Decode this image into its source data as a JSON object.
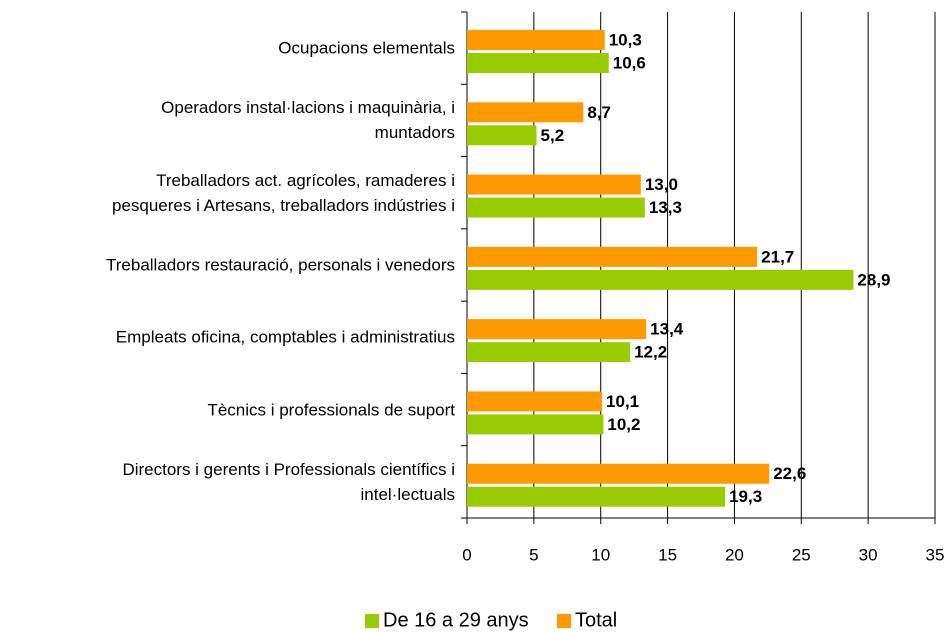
{
  "chart_data": {
    "type": "hbar",
    "categories": [
      "Ocupacions elementals",
      "Operadors instal·lacions i maquinària, i\nmuntadors",
      "Treballadors act. agrícoles, ramaderes i\npesqueres i Artesans, treballadors indústries i",
      "Treballadors restauració, personals i venedors",
      "Empleats oficina, comptables i administratius",
      "Tècnics i professionals de suport",
      "Directors i gerents i Professionals científics i\nintel·lectuals"
    ],
    "series": [
      {
        "name": "De 16 a 29 anys",
        "color": "#99cc00",
        "values": [
          10.6,
          5.2,
          13.3,
          28.9,
          12.2,
          10.2,
          19.3
        ],
        "value_labels": [
          "10,6",
          "5,2",
          "13,3",
          "28,9",
          "12,2",
          "10,2",
          "19,3"
        ]
      },
      {
        "name": "Total",
        "color": "#ff9900",
        "values": [
          10.3,
          8.7,
          13.0,
          21.7,
          13.4,
          10.1,
          22.6
        ],
        "value_labels": [
          "10,3",
          "8,7",
          "13,0",
          "21,7",
          "13,4",
          "10,1",
          "22,6"
        ]
      }
    ],
    "xlim": [
      0,
      35
    ],
    "xticks": [
      0,
      5,
      10,
      15,
      20,
      25,
      30,
      35
    ],
    "grid": true,
    "legend": "bottom"
  }
}
